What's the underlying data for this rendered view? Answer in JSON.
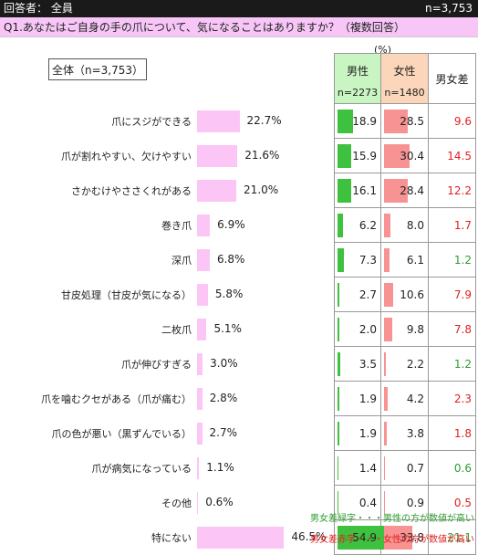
{
  "header": {
    "respondent": "回答者： 全員",
    "n_total": "n=3,753"
  },
  "question": "Q1.あなたはご自身の手の爪について、気になることはありますか？（複数回答）",
  "overall_label": "全体（n=3,753）",
  "unit": "(%)",
  "columns": {
    "male": "男性",
    "male_n": "n=2273",
    "female": "女性",
    "female_n": "n=1480",
    "diff": "男女差"
  },
  "notes": {
    "green": "男女差緑字・・・男性の方が数値が高い",
    "red": "男女差赤字・・・女性の方が数値が高い"
  },
  "colors": {
    "overall_bar": "#fbc6f6",
    "male_bar": "#3ec13e",
    "female_bar": "#f79393",
    "male_higher": "#2e9b2e",
    "female_higher": "#e02020"
  },
  "chart_data": {
    "type": "bar",
    "categories": [
      "爪にスジができる",
      "爪が割れやすい、欠けやすい",
      "さかむけやささくれがある",
      "巻き爪",
      "深爪",
      "甘皮処理（甘皮が気になる）",
      "二枚爪",
      "爪が伸びすぎる",
      "爪を噛むクセがある（爪が痛む）",
      "爪の色が悪い（黒ずんでいる）",
      "爪が病気になっている",
      "その他",
      "特にない"
    ],
    "overall": [
      "22.7%",
      "21.6%",
      "21.0%",
      "6.9%",
      "6.8%",
      "5.8%",
      "5.1%",
      "3.0%",
      "2.8%",
      "2.7%",
      "1.1%",
      "0.6%",
      "46.5%"
    ],
    "overall_values": [
      22.7,
      21.6,
      21.0,
      6.9,
      6.8,
      5.8,
      5.1,
      3.0,
      2.8,
      2.7,
      1.1,
      0.6,
      46.5
    ],
    "male": [
      "18.9",
      "15.9",
      "16.1",
      "6.2",
      "7.3",
      "2.7",
      "2.0",
      "3.5",
      "1.9",
      "1.9",
      "1.4",
      "0.4",
      "54.9"
    ],
    "male_values": [
      18.9,
      15.9,
      16.1,
      6.2,
      7.3,
      2.7,
      2.0,
      3.5,
      1.9,
      1.9,
      1.4,
      0.4,
      54.9
    ],
    "female": [
      "28.5",
      "30.4",
      "28.4",
      "8.0",
      "6.1",
      "10.6",
      "9.8",
      "2.2",
      "4.2",
      "3.8",
      "0.7",
      "0.9",
      "33.8"
    ],
    "female_values": [
      28.5,
      30.4,
      28.4,
      8.0,
      6.1,
      10.6,
      9.8,
      2.2,
      4.2,
      3.8,
      0.7,
      0.9,
      33.8
    ],
    "diff": [
      "9.6",
      "14.5",
      "12.2",
      "1.7",
      "1.2",
      "7.9",
      "7.8",
      "1.2",
      "2.3",
      "1.8",
      "0.6",
      "0.5",
      "21.1"
    ],
    "diff_higher": [
      "female",
      "female",
      "female",
      "female",
      "male",
      "female",
      "female",
      "male",
      "female",
      "female",
      "male",
      "female",
      "male"
    ]
  }
}
